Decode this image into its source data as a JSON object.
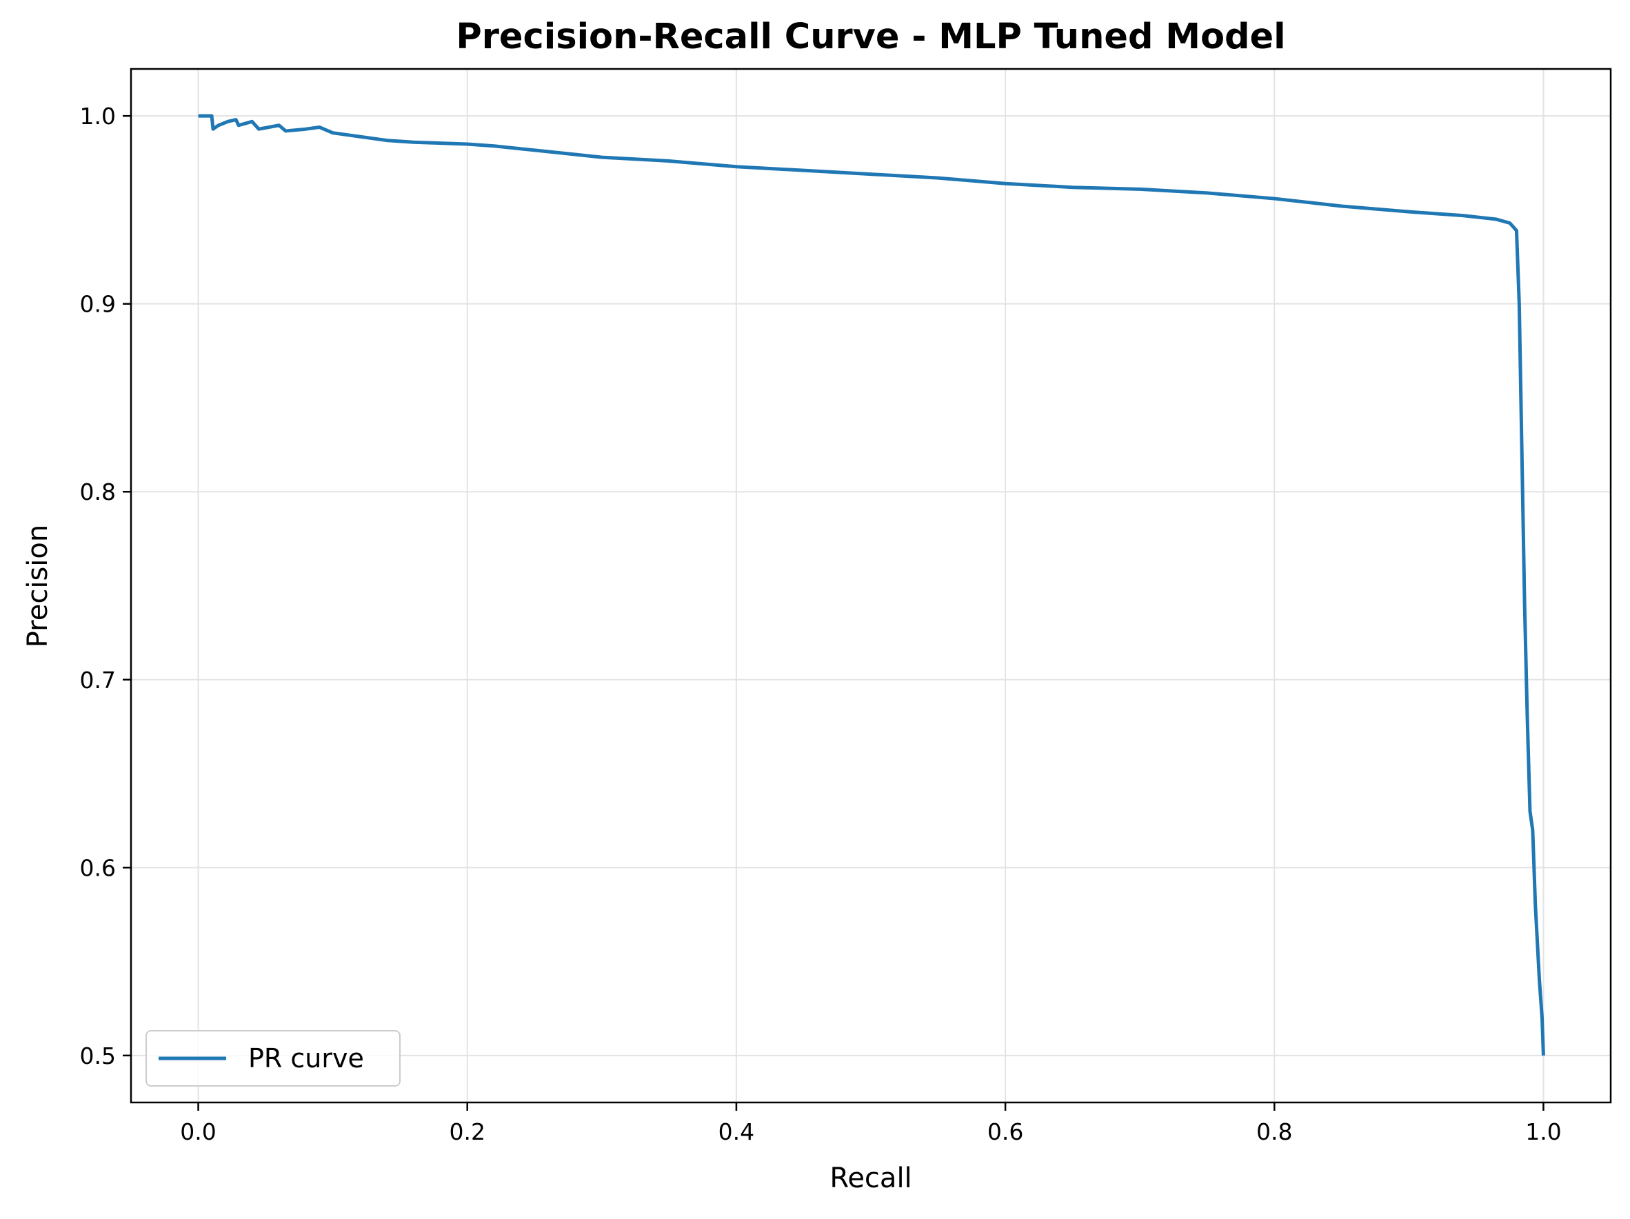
{
  "chart_data": {
    "type": "line",
    "title": "Precision-Recall Curve - MLP Tuned Model",
    "xlabel": "Recall",
    "ylabel": "Precision",
    "xlim": [
      -0.05,
      1.05
    ],
    "ylim": [
      0.475,
      1.025
    ],
    "xticks": [
      0.0,
      0.2,
      0.4,
      0.6,
      0.8,
      1.0
    ],
    "xtick_labels": [
      "0.0",
      "0.2",
      "0.4",
      "0.6",
      "0.8",
      "1.0"
    ],
    "yticks": [
      0.5,
      0.6,
      0.7,
      0.8,
      0.9,
      1.0
    ],
    "ytick_labels": [
      "0.5",
      "0.6",
      "0.7",
      "0.8",
      "0.9",
      "1.0"
    ],
    "grid": true,
    "legend_position": "lower-left",
    "series": [
      {
        "name": "PR curve",
        "color": "#1f77b4",
        "points": [
          [
            0.0,
            1.0
          ],
          [
            0.01,
            1.0
          ],
          [
            0.011,
            0.993
          ],
          [
            0.015,
            0.995
          ],
          [
            0.022,
            0.997
          ],
          [
            0.028,
            0.998
          ],
          [
            0.03,
            0.995
          ],
          [
            0.04,
            0.997
          ],
          [
            0.045,
            0.993
          ],
          [
            0.06,
            0.995
          ],
          [
            0.065,
            0.992
          ],
          [
            0.08,
            0.993
          ],
          [
            0.09,
            0.994
          ],
          [
            0.1,
            0.991
          ],
          [
            0.12,
            0.989
          ],
          [
            0.14,
            0.987
          ],
          [
            0.16,
            0.986
          ],
          [
            0.2,
            0.985
          ],
          [
            0.22,
            0.984
          ],
          [
            0.26,
            0.981
          ],
          [
            0.3,
            0.978
          ],
          [
            0.35,
            0.976
          ],
          [
            0.4,
            0.973
          ],
          [
            0.45,
            0.971
          ],
          [
            0.5,
            0.969
          ],
          [
            0.55,
            0.967
          ],
          [
            0.6,
            0.964
          ],
          [
            0.65,
            0.962
          ],
          [
            0.7,
            0.961
          ],
          [
            0.75,
            0.959
          ],
          [
            0.8,
            0.956
          ],
          [
            0.85,
            0.952
          ],
          [
            0.9,
            0.949
          ],
          [
            0.94,
            0.947
          ],
          [
            0.965,
            0.945
          ],
          [
            0.975,
            0.943
          ],
          [
            0.98,
            0.939
          ],
          [
            0.982,
            0.9
          ],
          [
            0.984,
            0.82
          ],
          [
            0.986,
            0.74
          ],
          [
            0.988,
            0.68
          ],
          [
            0.99,
            0.63
          ],
          [
            0.992,
            0.62
          ],
          [
            0.994,
            0.58
          ],
          [
            0.997,
            0.54
          ],
          [
            0.999,
            0.52
          ],
          [
            1.0,
            0.5
          ]
        ]
      }
    ]
  },
  "colors": {
    "line": "#1f77b4",
    "grid": "#e3e3e3",
    "axes": "#000000"
  }
}
